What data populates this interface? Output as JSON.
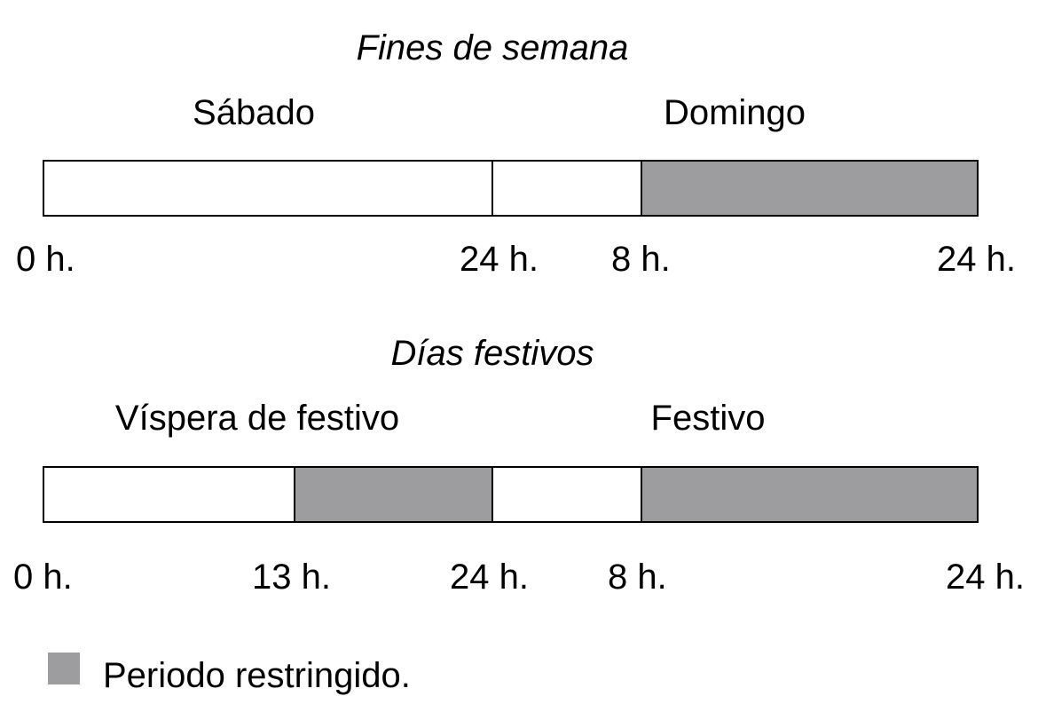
{
  "colors": {
    "restricted": "#9d9d9f",
    "free": "#ffffff",
    "line": "#000000"
  },
  "panels": [
    {
      "title": "Fines de semana",
      "days": [
        "Sábado",
        "Domingo"
      ],
      "segments": [
        {
          "from": "0 h.",
          "to": "24 h.",
          "restricted": false
        },
        {
          "from": "0 h.",
          "to": "8 h.",
          "restricted": false
        },
        {
          "from": "8 h.",
          "to": "24 h.",
          "restricted": true
        }
      ],
      "ticks": [
        "0 h.",
        "24 h.",
        "8 h.",
        "24 h."
      ]
    },
    {
      "title": "Días festivos",
      "days": [
        "Víspera de festivo",
        "Festivo"
      ],
      "segments": [
        {
          "from": "0 h.",
          "to": "13 h.",
          "restricted": false
        },
        {
          "from": "13 h.",
          "to": "24 h.",
          "restricted": true
        },
        {
          "from": "0 h.",
          "to": "8 h.",
          "restricted": false
        },
        {
          "from": "8 h.",
          "to": "24 h.",
          "restricted": true
        }
      ],
      "ticks": [
        "0 h.",
        "13 h.",
        "24 h.",
        "8 h.",
        "24 h."
      ]
    }
  ],
  "legend": {
    "label": "Periodo restringido."
  }
}
